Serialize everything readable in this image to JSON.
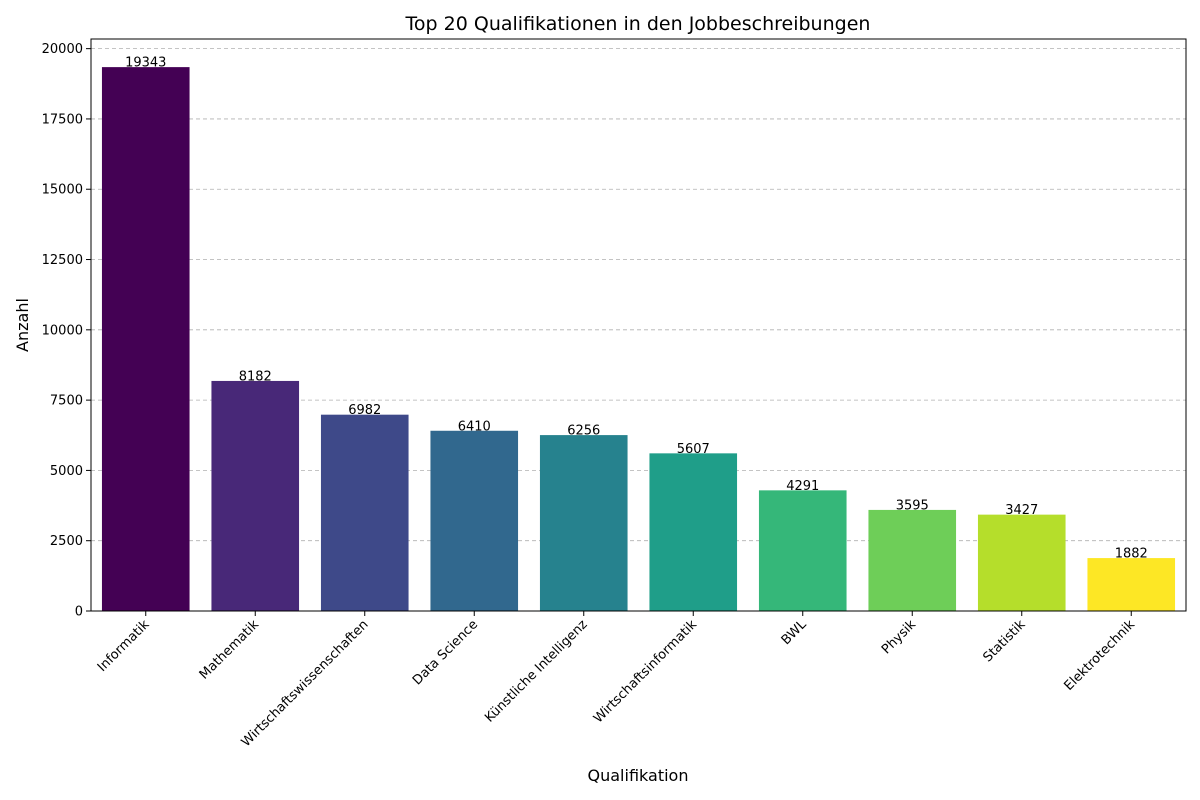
{
  "chart_data": {
    "type": "bar",
    "title": "Top 20 Qualifikationen in den Jobbeschreibungen",
    "xlabel": "Qualifikation",
    "ylabel": "Anzahl",
    "categories": [
      "Informatik",
      "Mathematik",
      "Wirtschaftswissenschaften",
      "Data Science",
      "Künstliche Intelligenz",
      "Wirtschaftsinformatik",
      "BWL",
      "Physik",
      "Statistik",
      "Elektrotechnik"
    ],
    "values": [
      19343,
      8182,
      6982,
      6410,
      6256,
      5607,
      4291,
      3595,
      3427,
      1882
    ],
    "data_labels": [
      "19343",
      "8182",
      "6982",
      "6410",
      "6256",
      "5607",
      "4291",
      "3595",
      "3427",
      "1882"
    ],
    "colors": [
      "#440154",
      "#482878",
      "#3e4989",
      "#31688e",
      "#26828e",
      "#1f9e89",
      "#35b779",
      "#6ece58",
      "#b5de2b",
      "#fde725"
    ],
    "ylim": [
      0,
      20343
    ],
    "yticks": [
      0,
      2500,
      5000,
      7500,
      10000,
      12500,
      15000,
      17500,
      20000
    ],
    "ytick_labels": [
      "0",
      "2500",
      "5000",
      "7500",
      "10000",
      "12500",
      "15000",
      "17500",
      "20000"
    ],
    "grid": "y-dashed",
    "legend": "none"
  }
}
